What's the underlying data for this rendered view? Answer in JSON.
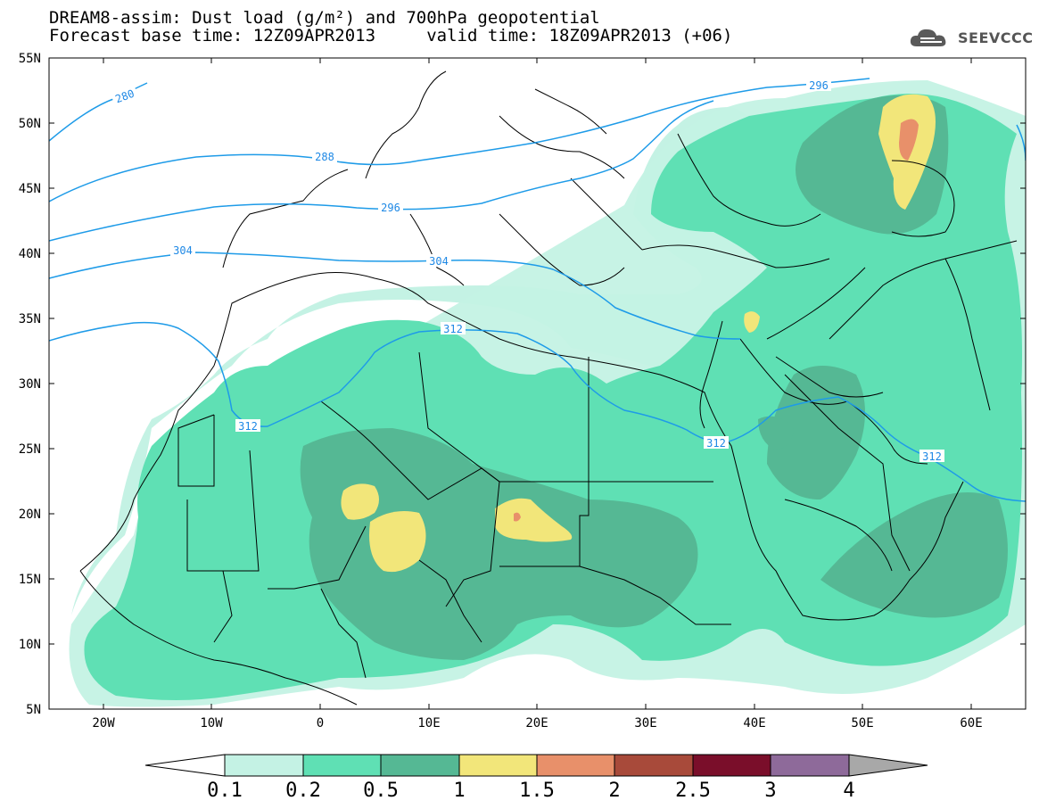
{
  "title": {
    "line1": "DREAM8-assim: Dust load (g/m²) and 700hPa geopotential",
    "line2": "Forecast base time: 12Z09APR2013     valid time: 18Z09APR2013 (+06)"
  },
  "logo": {
    "text": "SEEVCCC",
    "icon": "cloud-icon"
  },
  "axes": {
    "lat_labels": [
      "55N",
      "50N",
      "45N",
      "40N",
      "35N",
      "30N",
      "25N",
      "20N",
      "15N",
      "10N",
      "5N"
    ],
    "lon_labels": [
      "20W",
      "10W",
      "0",
      "10E",
      "20E",
      "30E",
      "40E",
      "50E",
      "60E"
    ]
  },
  "contour_labels": [
    "280",
    "288",
    "296",
    "304",
    "312",
    "312",
    "304",
    "312",
    "312",
    "296"
  ],
  "colorbar": {
    "ticks": [
      "0.1",
      "0.2",
      "0.5",
      "1",
      "1.5",
      "2",
      "2.5",
      "3",
      "4"
    ],
    "colors": [
      "#c4f2e4",
      "#5fe0b4",
      "#55b894",
      "#f2e67a",
      "#e8906a",
      "#a84a3a",
      "#7a0e2a",
      "#8e6a9a",
      "#a8a8a8"
    ]
  },
  "colors": {
    "dust_01": "#c4f2e4",
    "dust_02": "#5fe0b4",
    "dust_05": "#55b894",
    "dust_1": "#f2e67a",
    "dust_15": "#e8906a",
    "contour": "#1e9be8",
    "border": "#000000"
  }
}
